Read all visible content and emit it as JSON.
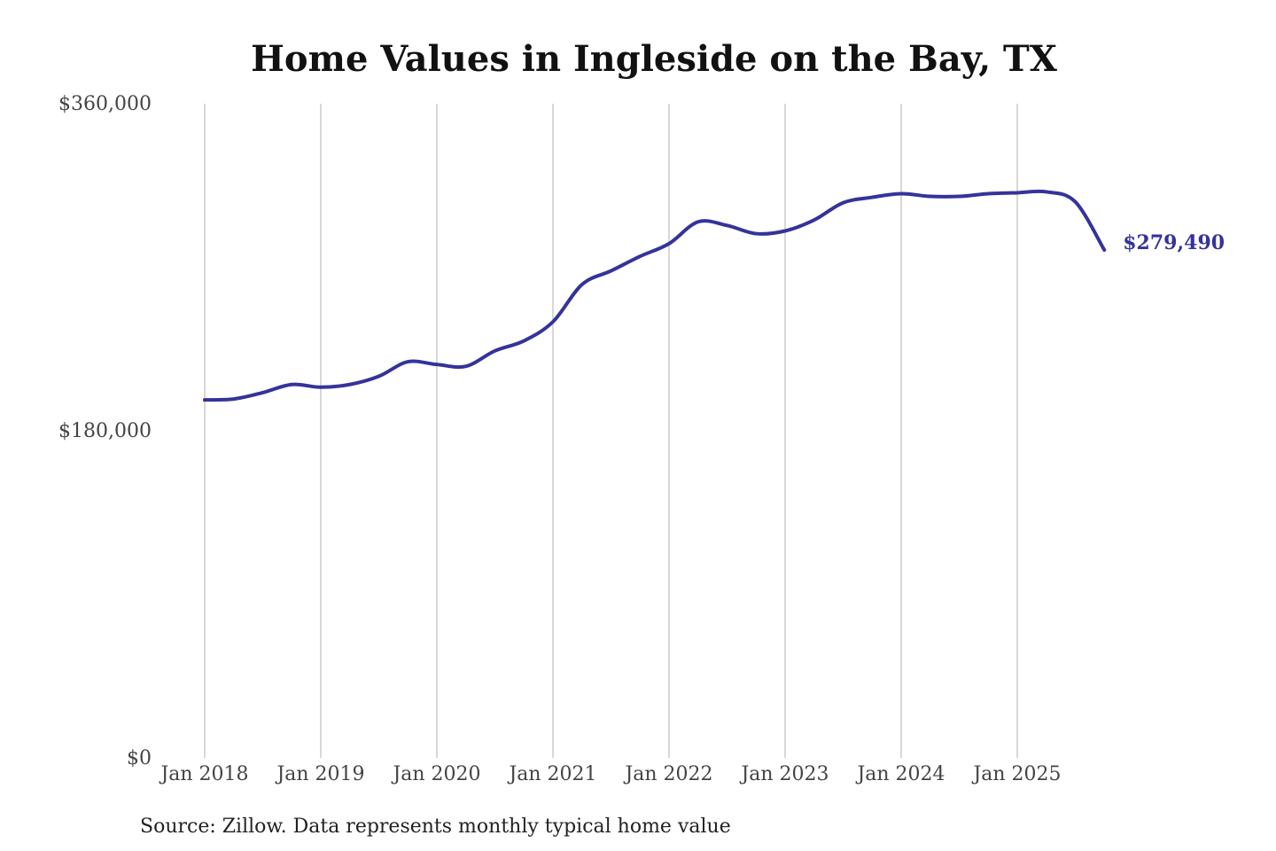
{
  "chart_data": {
    "type": "line",
    "title": "Home Values in Ingleside on the Bay, TX",
    "xlabel": "",
    "ylabel": "",
    "source": "Source: Zillow. Data represents monthly typical home value",
    "ylim": [
      0,
      360000
    ],
    "yticks": [
      {
        "value": 0,
        "label": "$0"
      },
      {
        "value": 180000,
        "label": "$180,000"
      },
      {
        "value": 360000,
        "label": "$360,000"
      }
    ],
    "xlim": [
      "2018-01",
      "2025-10"
    ],
    "xticks": [
      {
        "x": "2018-01",
        "label": "Jan 2018"
      },
      {
        "x": "2019-01",
        "label": "Jan 2019"
      },
      {
        "x": "2020-01",
        "label": "Jan 2020"
      },
      {
        "x": "2021-01",
        "label": "Jan 2021"
      },
      {
        "x": "2022-01",
        "label": "Jan 2022"
      },
      {
        "x": "2023-01",
        "label": "Jan 2023"
      },
      {
        "x": "2024-01",
        "label": "Jan 2024"
      },
      {
        "x": "2025-01",
        "label": "Jan 2025"
      }
    ],
    "grid": "vertical lines at year ticks",
    "colors": {
      "line": "#35339a",
      "grid": "#c4c4c4",
      "title": "#111111",
      "tick": "#444444"
    },
    "series": [
      {
        "end_label": "$279,490",
        "x": [
          "2018-01",
          "2018-04",
          "2018-07",
          "2018-10",
          "2019-01",
          "2019-04",
          "2019-07",
          "2019-10",
          "2020-01",
          "2020-04",
          "2020-07",
          "2020-10",
          "2021-01",
          "2021-04",
          "2021-07",
          "2021-10",
          "2022-01",
          "2022-04",
          "2022-07",
          "2022-10",
          "2023-01",
          "2023-04",
          "2023-07",
          "2023-10",
          "2024-01",
          "2024-04",
          "2024-07",
          "2024-10",
          "2025-01",
          "2025-04",
          "2025-07",
          "2025-10"
        ],
        "values": [
          197000,
          197500,
          201000,
          205500,
          204000,
          205500,
          210000,
          218000,
          216500,
          215500,
          224000,
          229500,
          240000,
          260500,
          268000,
          276000,
          283000,
          295000,
          293000,
          288500,
          290000,
          296000,
          305500,
          308500,
          310500,
          309000,
          309000,
          310500,
          311000,
          311500,
          306000,
          279490
        ]
      }
    ]
  }
}
